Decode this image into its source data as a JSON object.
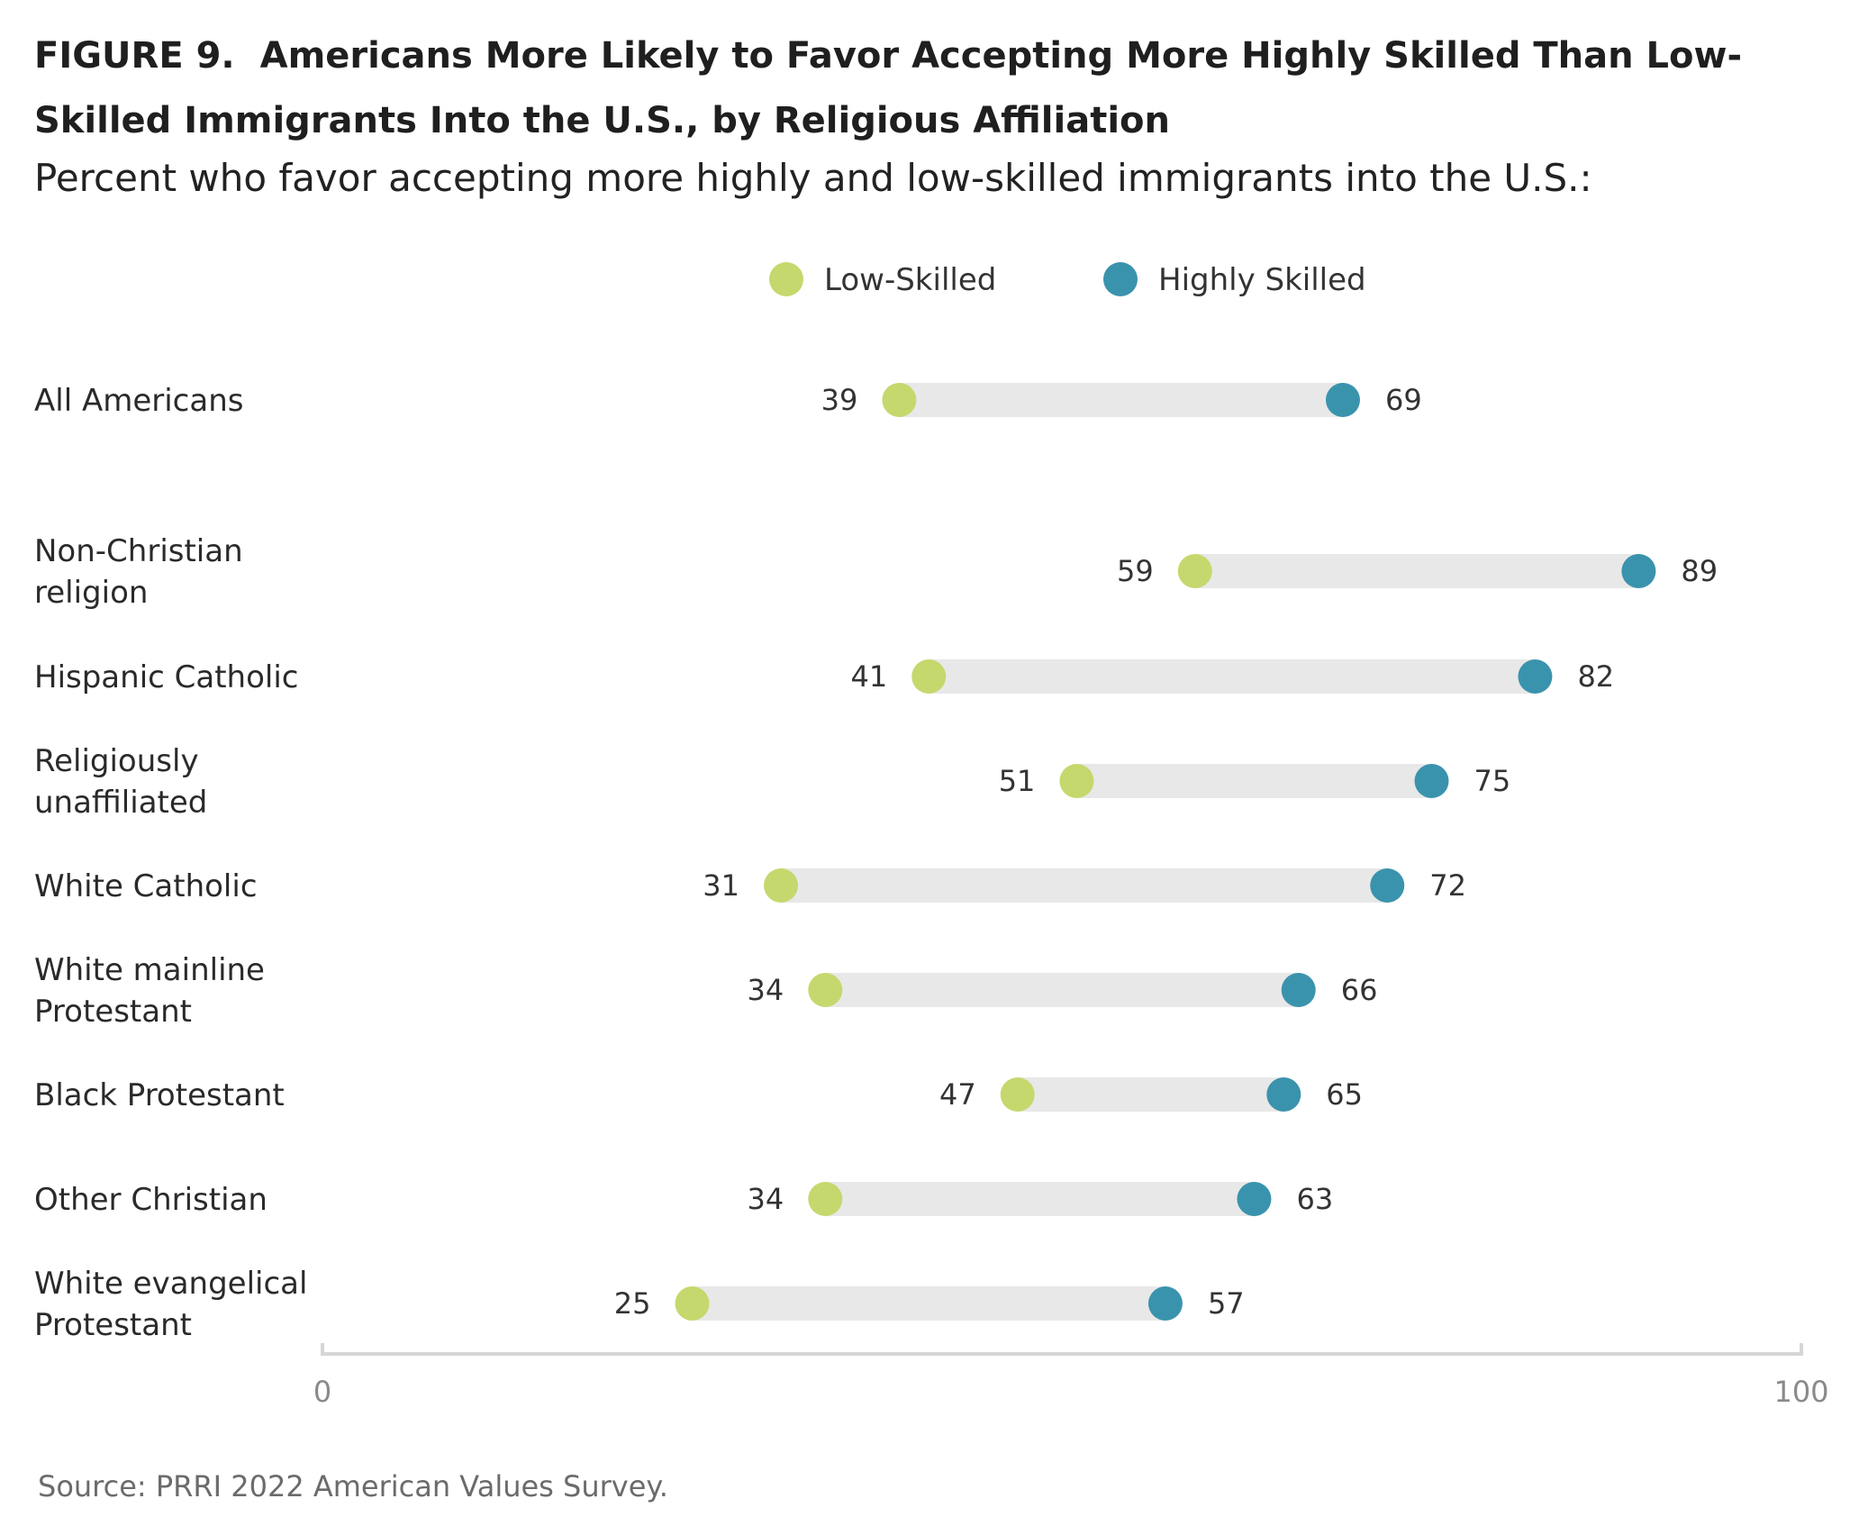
{
  "figure": {
    "label": "FIGURE 9.",
    "title": "Americans More Likely to Favor Accepting More Highly Skilled Than Low-Skilled Immigrants Into the U.S., by Religious Affiliation",
    "subtitle": "Percent who favor accepting more highly and low-skilled immigrants into the U.S.:",
    "source": "Source: PRRI 2022 American Values Survey."
  },
  "chart_data": {
    "type": "dumbbell",
    "xlim": [
      0,
      100
    ],
    "x_tick_labels": [
      "0",
      "100"
    ],
    "legend_position": "top-center",
    "grid": false,
    "colors": {
      "low_skilled": "#c5d86d",
      "highly_skilled": "#3a93ad",
      "connector": "#e8e8e8",
      "axis": "#d6d6d6"
    },
    "series": [
      {
        "name": "Low-Skilled",
        "key": "low"
      },
      {
        "name": "Highly Skilled",
        "key": "high"
      }
    ],
    "categories": [
      {
        "label": [
          "All Americans"
        ],
        "low": 39,
        "high": 69
      },
      {
        "label": [
          "Non-Christian",
          "religion"
        ],
        "low": 59,
        "high": 89
      },
      {
        "label": [
          "Hispanic Catholic"
        ],
        "low": 41,
        "high": 82
      },
      {
        "label": [
          "Religiously",
          "unaffiliated"
        ],
        "low": 51,
        "high": 75
      },
      {
        "label": [
          "White Catholic"
        ],
        "low": 31,
        "high": 72
      },
      {
        "label": [
          "White mainline",
          "Protestant"
        ],
        "low": 34,
        "high": 66
      },
      {
        "label": [
          "Black Protestant"
        ],
        "low": 47,
        "high": 65
      },
      {
        "label": [
          "Other Christian"
        ],
        "low": 34,
        "high": 63
      },
      {
        "label": [
          "White evangelical",
          "Protestant"
        ],
        "low": 25,
        "high": 57
      }
    ]
  }
}
